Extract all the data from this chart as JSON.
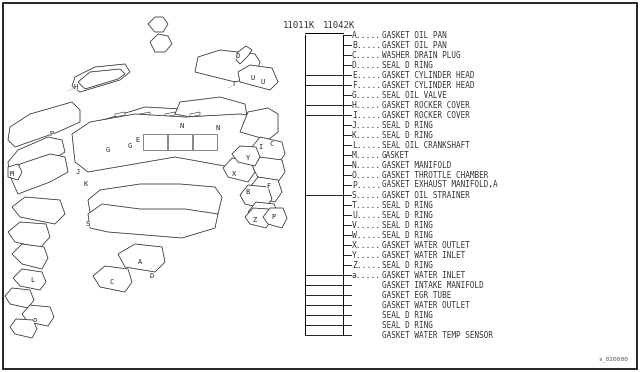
{
  "bg_color": "#ffffff",
  "text_color": "#333333",
  "part_number_left": "11011K",
  "part_number_right": "11042K",
  "watermark": "s_020000",
  "parts_list": [
    [
      "A",
      "GASKET OIL PAN"
    ],
    [
      "B",
      "GASKET OIL PAN"
    ],
    [
      "C",
      "WASHER DRAIN PLUG"
    ],
    [
      "D",
      "SEAL D RING"
    ],
    [
      "E",
      "GASKET CYLINDER HEAD"
    ],
    [
      "F",
      "GASKET CYLINDER HEAD"
    ],
    [
      "G",
      "SEAL OIL VALVE"
    ],
    [
      "H",
      "GASKET ROCKER COVER"
    ],
    [
      "I",
      "GASKET ROCKER COVER"
    ],
    [
      "J",
      "SEAL D RING"
    ],
    [
      "K",
      "SEAL D RING"
    ],
    [
      "L",
      "SEAL OIL CRANKSHAFT"
    ],
    [
      "M",
      "GASKET"
    ],
    [
      "N",
      "GASKET MANIFOLD"
    ],
    [
      "O",
      "GASKET THROTTLE CHAMBER"
    ],
    [
      "P",
      "GASKET EXHAUST MANIFOLD,A"
    ],
    [
      "S",
      "GASKET OIL STRAINER"
    ],
    [
      "T",
      "SEAL D RING"
    ],
    [
      "U",
      "SEAL D RING"
    ],
    [
      "V",
      "SEAL D RING"
    ],
    [
      "W",
      "SEAL D RING"
    ],
    [
      "X",
      "GASKET WATER OUTLET"
    ],
    [
      "Y",
      "GASKET WATER INLET"
    ],
    [
      "Z",
      "SEAL D RING"
    ],
    [
      "a",
      "GASKET WATER INLET"
    ],
    [
      "",
      "GASKET INTAKE MANIFOLD"
    ],
    [
      "",
      "GASKET EGR TUBE"
    ],
    [
      "",
      "GASKET WATER OUTLET"
    ],
    [
      "",
      "SEAL D RING"
    ],
    [
      "",
      "SEAL D RING"
    ],
    [
      "",
      "GASKET WATER TEMP SENSOR"
    ]
  ],
  "font_size_small": 5.5,
  "font_size_label": 5.8,
  "font_size_pn": 6.5
}
